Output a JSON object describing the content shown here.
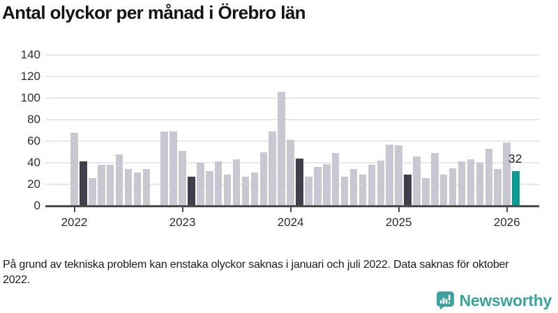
{
  "title": "Antal olyckor per månad i Örebro län",
  "footnote": "På grund av tekniska problem kan enstaka olyckor saknas i januari och juli 2022. Data saknas för oktober 2022.",
  "annotation": {
    "latest_value_label": "32"
  },
  "brand": {
    "wordmark": "Newsworthy",
    "color": "#3ca19c",
    "icon": "newsworthy-speech-bubble-bar-chart-icon"
  },
  "chart_data": {
    "type": "bar",
    "title": "Antal olyckor per månad i Örebro län",
    "xlabel": "",
    "ylabel": "",
    "ylim": [
      0,
      140
    ],
    "y_ticks": [
      0,
      20,
      40,
      60,
      80,
      100,
      120,
      140
    ],
    "x_tick_labels": [
      "2022",
      "2023",
      "2024",
      "2025",
      "2026"
    ],
    "grid": true,
    "legend": "none",
    "bar_colors": {
      "default": "#c9c8d2",
      "highlight_dark": "#413f4e",
      "latest": "#0c9b94"
    },
    "missing_months": [
      "2022-10"
    ],
    "points": [
      {
        "month": "2022-01",
        "value": 68
      },
      {
        "month": "2022-02",
        "value": 41,
        "highlight": "dark"
      },
      {
        "month": "2022-03",
        "value": 26
      },
      {
        "month": "2022-04",
        "value": 38
      },
      {
        "month": "2022-05",
        "value": 38
      },
      {
        "month": "2022-06",
        "value": 48
      },
      {
        "month": "2022-07",
        "value": 34
      },
      {
        "month": "2022-08",
        "value": 31
      },
      {
        "month": "2022-09",
        "value": 34
      },
      {
        "month": "2022-10",
        "value": null
      },
      {
        "month": "2022-11",
        "value": 69
      },
      {
        "month": "2022-12",
        "value": 69
      },
      {
        "month": "2023-01",
        "value": 51
      },
      {
        "month": "2023-02",
        "value": 27,
        "highlight": "dark"
      },
      {
        "month": "2023-03",
        "value": 40
      },
      {
        "month": "2023-04",
        "value": 32
      },
      {
        "month": "2023-05",
        "value": 41
      },
      {
        "month": "2023-06",
        "value": 29
      },
      {
        "month": "2023-07",
        "value": 43
      },
      {
        "month": "2023-08",
        "value": 27
      },
      {
        "month": "2023-09",
        "value": 31
      },
      {
        "month": "2023-10",
        "value": 50
      },
      {
        "month": "2023-11",
        "value": 69
      },
      {
        "month": "2023-12",
        "value": 106
      },
      {
        "month": "2024-01",
        "value": 61
      },
      {
        "month": "2024-02",
        "value": 44,
        "highlight": "dark"
      },
      {
        "month": "2024-03",
        "value": 27
      },
      {
        "month": "2024-04",
        "value": 36
      },
      {
        "month": "2024-05",
        "value": 39
      },
      {
        "month": "2024-06",
        "value": 49
      },
      {
        "month": "2024-07",
        "value": 27
      },
      {
        "month": "2024-08",
        "value": 34
      },
      {
        "month": "2024-09",
        "value": 29
      },
      {
        "month": "2024-10",
        "value": 38
      },
      {
        "month": "2024-11",
        "value": 42
      },
      {
        "month": "2024-12",
        "value": 57
      },
      {
        "month": "2025-01",
        "value": 56
      },
      {
        "month": "2025-02",
        "value": 29,
        "highlight": "dark"
      },
      {
        "month": "2025-03",
        "value": 46
      },
      {
        "month": "2025-04",
        "value": 26
      },
      {
        "month": "2025-05",
        "value": 49
      },
      {
        "month": "2025-06",
        "value": 29
      },
      {
        "month": "2025-07",
        "value": 35
      },
      {
        "month": "2025-08",
        "value": 41
      },
      {
        "month": "2025-09",
        "value": 43
      },
      {
        "month": "2025-10",
        "value": 40
      },
      {
        "month": "2025-11",
        "value": 53
      },
      {
        "month": "2025-12",
        "value": 34
      },
      {
        "month": "2026-01",
        "value": 59
      },
      {
        "month": "2026-02",
        "value": 32,
        "highlight": "latest"
      }
    ]
  }
}
